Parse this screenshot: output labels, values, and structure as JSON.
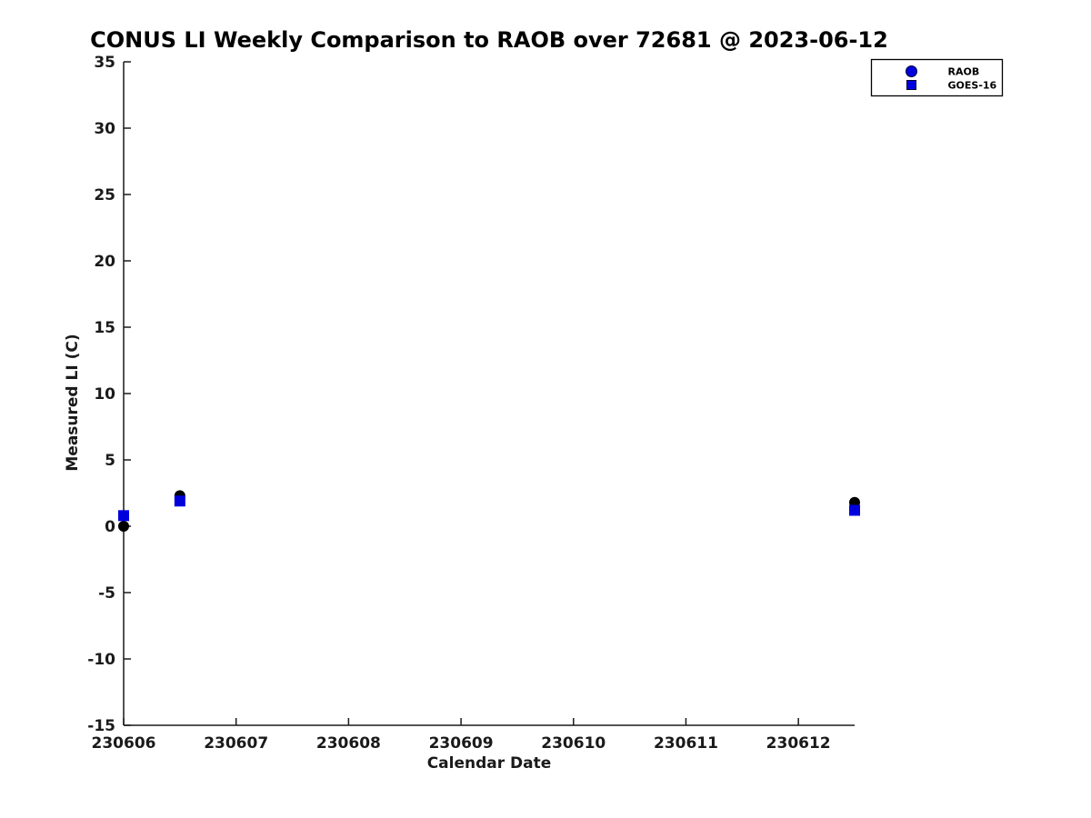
{
  "title": "CONUS LI Weekly Comparison to RAOB over 72681 @ 2023-06-12",
  "chart_data": {
    "type": "scatter",
    "title": "CONUS LI Weekly Comparison to RAOB over 72681 @ 2023-06-12",
    "xlabel": "Calendar Date",
    "ylabel": "Measured LI (C)",
    "xlim": [
      230606,
      230612.5
    ],
    "ylim": [
      -15,
      35
    ],
    "x_ticks": [
      230606,
      230607,
      230608,
      230609,
      230610,
      230611,
      230612
    ],
    "x_tick_labels": [
      "230606",
      "230607",
      "230608",
      "230609",
      "230610",
      "230611",
      "230612"
    ],
    "y_ticks": [
      35,
      30,
      25,
      20,
      15,
      10,
      5,
      0,
      -5,
      -10,
      -15
    ],
    "y_tick_labels": [
      "35",
      "30",
      "25",
      "20",
      "15",
      "10",
      "5",
      "0",
      "-5",
      "-10",
      "-15"
    ],
    "grid": false,
    "box": "left-bottom-only",
    "legend_position": "top-right",
    "series": [
      {
        "name": "RAOB",
        "marker": "circle",
        "color": "#000000",
        "legend_marker_color": "#0000dd",
        "x": [
          230606.0,
          230606.5,
          230612.5
        ],
        "y": [
          0.0,
          2.3,
          1.8
        ]
      },
      {
        "name": "GOES-16",
        "marker": "square",
        "color": "#0000dd",
        "legend_marker_color": "#0000dd",
        "x": [
          230606.0,
          230606.5,
          230612.5
        ],
        "y": [
          0.8,
          1.9,
          1.2
        ]
      }
    ],
    "colors": {
      "axis": "#1a1a1a",
      "tick_label": "#1a1a1a",
      "title": "#000000",
      "blue_marker": "#0000dd",
      "black_marker": "#000000",
      "legend_border": "#000000",
      "background": "#ffffff"
    }
  }
}
